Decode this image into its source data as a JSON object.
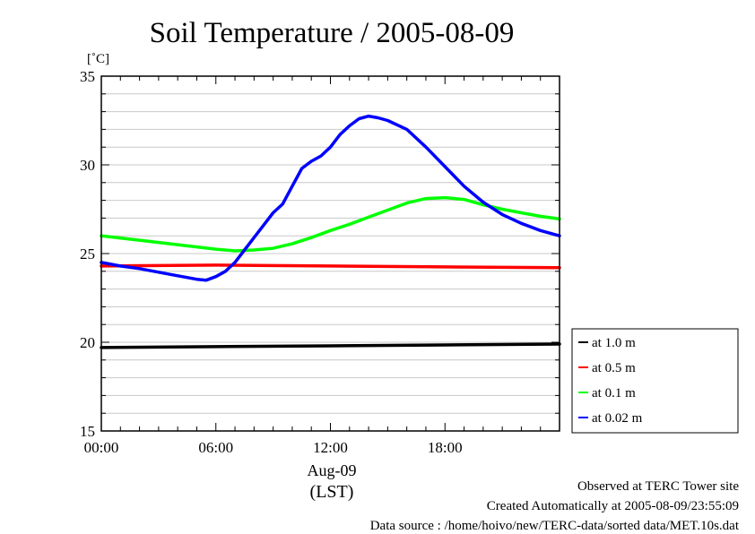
{
  "chart_data": {
    "type": "line",
    "title": "Soil Temperature / 2005-08-09",
    "ylabel": "[˚C]",
    "xlabel": "(LST)",
    "date_label": "Aug-09",
    "ylim": [
      15,
      35
    ],
    "yticks": [
      15,
      20,
      25,
      30,
      35
    ],
    "xlim": [
      0,
      24
    ],
    "xticks": [
      0,
      6,
      12,
      18
    ],
    "xtick_labels": [
      "00:00",
      "06:00",
      "12:00",
      "18:00"
    ],
    "grid": true,
    "legend_position": "right",
    "series": [
      {
        "name": "at 1.0 m",
        "color": "#000000",
        "x": [
          0,
          6,
          12,
          18,
          24
        ],
        "y": [
          19.7,
          19.75,
          19.8,
          19.85,
          19.9
        ]
      },
      {
        "name": "at 0.5 m",
        "color": "#ff0000",
        "x": [
          0,
          6,
          12,
          18,
          24
        ],
        "y": [
          24.3,
          24.35,
          24.3,
          24.25,
          24.2
        ]
      },
      {
        "name": "at 0.1 m",
        "color": "#00ff00",
        "x": [
          0,
          2,
          4,
          6,
          7,
          8,
          9,
          10,
          11,
          12,
          13,
          14,
          15,
          16,
          17,
          18,
          19,
          20,
          21,
          22,
          23,
          24
        ],
        "y": [
          26.0,
          25.75,
          25.5,
          25.25,
          25.15,
          25.2,
          25.3,
          25.55,
          25.9,
          26.3,
          26.65,
          27.05,
          27.45,
          27.85,
          28.1,
          28.15,
          28.05,
          27.75,
          27.5,
          27.3,
          27.1,
          26.95
        ]
      },
      {
        "name": "at 0.02 m",
        "color": "#0000ff",
        "x": [
          0,
          1,
          2,
          3,
          4,
          5,
          5.5,
          6,
          6.5,
          7,
          7.5,
          8,
          8.5,
          9,
          9.5,
          10,
          10.5,
          11,
          11.5,
          12,
          12.5,
          13,
          13.5,
          14,
          14.5,
          15,
          16,
          17,
          18,
          19,
          20,
          21,
          22,
          23,
          24
        ],
        "y": [
          24.5,
          24.3,
          24.15,
          23.95,
          23.75,
          23.55,
          23.5,
          23.7,
          24.0,
          24.5,
          25.2,
          25.9,
          26.6,
          27.3,
          27.8,
          28.8,
          29.8,
          30.2,
          30.5,
          31.0,
          31.7,
          32.2,
          32.6,
          32.75,
          32.65,
          32.5,
          32.0,
          31.0,
          29.9,
          28.8,
          27.9,
          27.2,
          26.7,
          26.3,
          26.0
        ]
      }
    ]
  },
  "footer": {
    "line1": "Observed at TERC Tower site",
    "line2": "Created Automatically at 2005-08-09/23:55:09",
    "line3": "Data source : /home/hoivo/new/TERC-data/sorted  data/MET.10s.dat"
  }
}
